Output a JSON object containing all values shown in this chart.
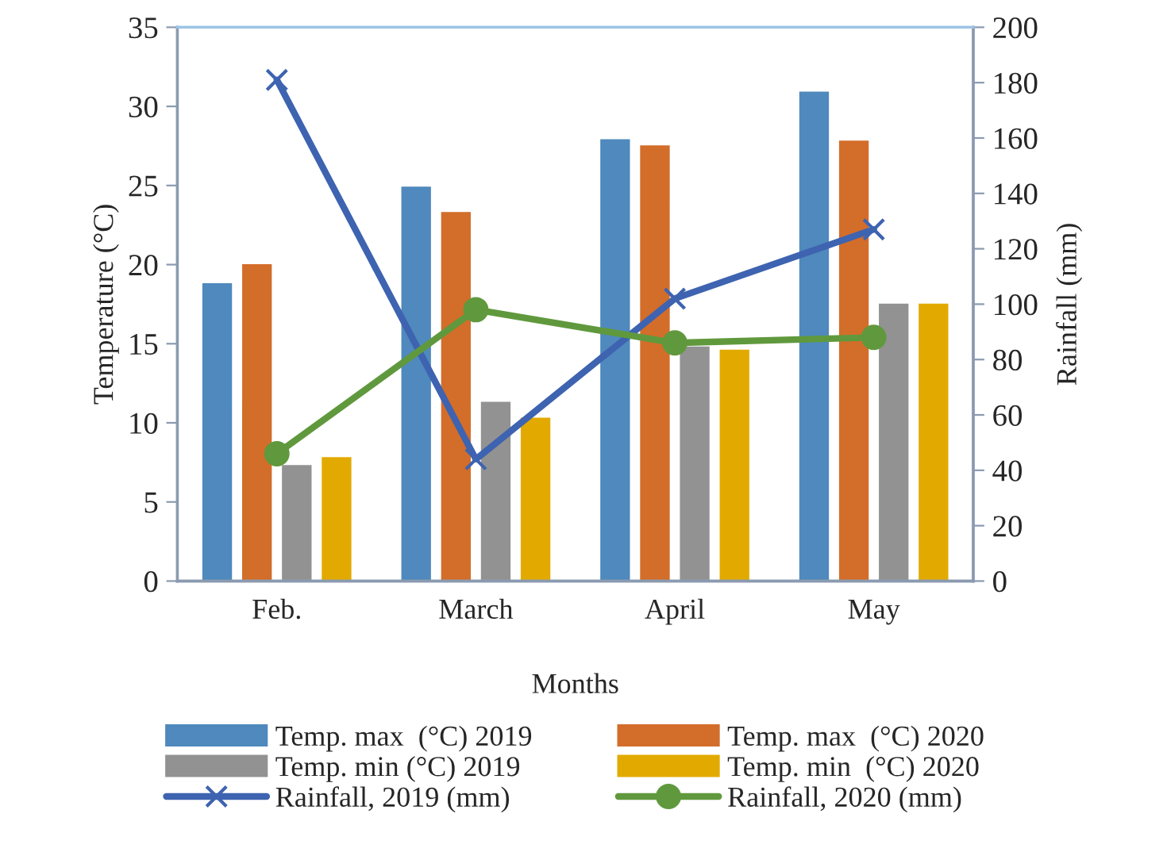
{
  "chart_data": {
    "type": "bar",
    "xlabel": "Months",
    "ylabel": "Temperature (°C)",
    "y2label": "Rainfall (mm)",
    "categories": [
      "Feb.",
      "March",
      "April",
      "May"
    ],
    "series": [
      {
        "name": "Temp. max  (°C) 2019",
        "color": "#4f89bd",
        "values": [
          18.9,
          25.0,
          28.0,
          31.0
        ]
      },
      {
        "name": "Temp. max  (°C) 2020",
        "color": "#d36d2a",
        "values": [
          20.1,
          23.4,
          27.6,
          27.9
        ]
      },
      {
        "name": "Temp. min (°C) 2019",
        "color": "#929292",
        "values": [
          7.4,
          11.4,
          14.9,
          17.6
        ]
      },
      {
        "name": "Temp. min  (°C) 2020",
        "color": "#e2aa00",
        "values": [
          7.9,
          10.4,
          14.7,
          17.6
        ]
      },
      {
        "name": "Rainfall, 2019 (mm)",
        "color": "#3e63b0",
        "type": "line",
        "axis": "y2",
        "marker": "cross",
        "values": [
          181,
          44,
          102,
          127
        ]
      },
      {
        "name": "Rainfall, 2020 (mm)",
        "color": "#60993d",
        "type": "line",
        "axis": "y2",
        "marker": "circle",
        "values": [
          46,
          98,
          86,
          88
        ]
      }
    ],
    "ylim": [
      0,
      35
    ],
    "yticks": [
      0,
      5,
      10,
      15,
      20,
      25,
      30,
      35
    ],
    "y2lim": [
      0,
      200
    ],
    "y2ticks": [
      0,
      20,
      40,
      60,
      80,
      100,
      120,
      140,
      160,
      180,
      200
    ],
    "grid": false,
    "legend": "bottom"
  }
}
